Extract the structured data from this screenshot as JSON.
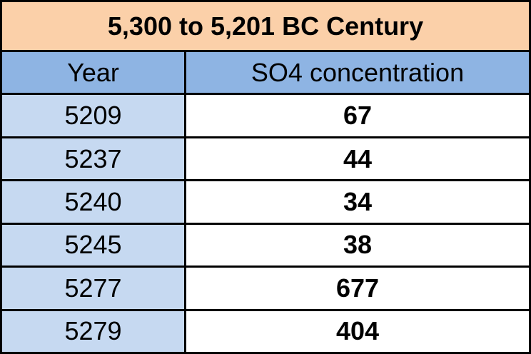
{
  "table": {
    "title": "5,300 to 5,201 BC Century",
    "headers": [
      "Year",
      "SO4 concentration"
    ],
    "rows": [
      [
        5209,
        67
      ],
      [
        5237,
        44
      ],
      [
        5240,
        34
      ],
      [
        5245,
        38
      ],
      [
        5277,
        677
      ],
      [
        5279,
        404
      ]
    ]
  }
}
